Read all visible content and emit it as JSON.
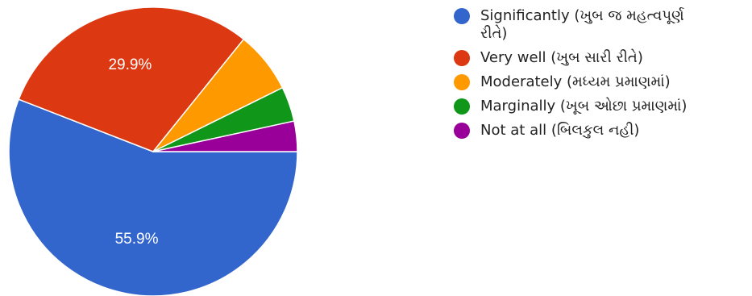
{
  "chart_data": {
    "type": "pie",
    "slices": [
      {
        "label": "Significantly (ખુબ જ મહત્વપૂર્ણ રીતે)",
        "value": 55.9,
        "value_label": "55.9%",
        "color": "#3366cc"
      },
      {
        "label": "Very well (ખુબ સારી રીતે)",
        "value": 29.9,
        "value_label": "29.9%",
        "color": "#dc3912"
      },
      {
        "label": "Moderately (મધ્યમ પ્રમાણમાં)",
        "value": 6.9,
        "value_label": "",
        "color": "#ff9900"
      },
      {
        "label": "Marginally (ખૂબ ઓછા પ્રમાણમાં)",
        "value": 3.9,
        "value_label": "",
        "color": "#109618"
      },
      {
        "label": "Not at all (બિલકુલ નહી)",
        "value": 3.4,
        "value_label": "",
        "color": "#990099"
      }
    ],
    "legend_position": "right",
    "legend_lines": [
      [
        "Significantly (ખુબ જ મહત્વપૂર્ણ",
        "રીતે)"
      ],
      [
        "Very well (ખુબ સારી રીતે)"
      ],
      [
        "Moderately (મધ્યમ પ્રમાણમાં)"
      ],
      [
        "Marginally (ખૂબ ઓછા પ્રમાણમાં)"
      ],
      [
        "Not at all (બિલકુલ નહી)"
      ]
    ]
  }
}
